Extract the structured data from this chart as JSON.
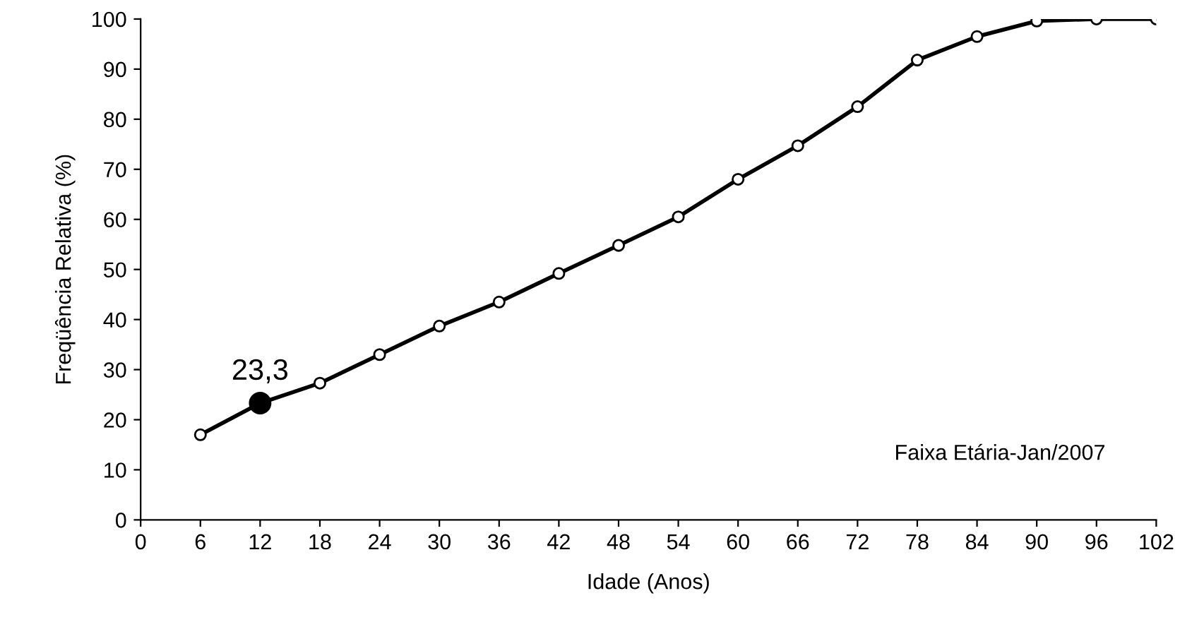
{
  "chart_data": {
    "type": "line",
    "xlabel": "Idade (Anos)",
    "ylabel": "Freqüência Relativa (%)",
    "x": [
      6,
      12,
      18,
      24,
      30,
      36,
      42,
      48,
      54,
      60,
      66,
      72,
      78,
      84,
      90,
      96,
      102
    ],
    "series": [
      {
        "color": "#000000",
        "marker": "circle",
        "values": [
          17,
          23.3,
          27.3,
          33,
          38.7,
          43.5,
          49.2,
          54.8,
          60.5,
          68,
          74.7,
          82.5,
          91.8,
          96.5,
          99.6,
          100,
          100
        ]
      },
      {
        "type": "scatter",
        "color": "#000000",
        "x": [
          12
        ],
        "values": [
          23.3
        ],
        "value_labels": [
          "23,3"
        ]
      }
    ],
    "annotations": [
      "Faixa Etária-Jan/2007"
    ],
    "xlim": [
      0,
      102
    ],
    "xticks": [
      0,
      6,
      12,
      18,
      24,
      30,
      36,
      42,
      48,
      54,
      60,
      66,
      72,
      78,
      84,
      90,
      96,
      102
    ],
    "ylim": [
      0,
      100
    ],
    "yticks": [
      0,
      10,
      20,
      30,
      40,
      50,
      60,
      70,
      80,
      90,
      100
    ],
    "grid": false,
    "legend": false,
    "line_style": "solid"
  }
}
